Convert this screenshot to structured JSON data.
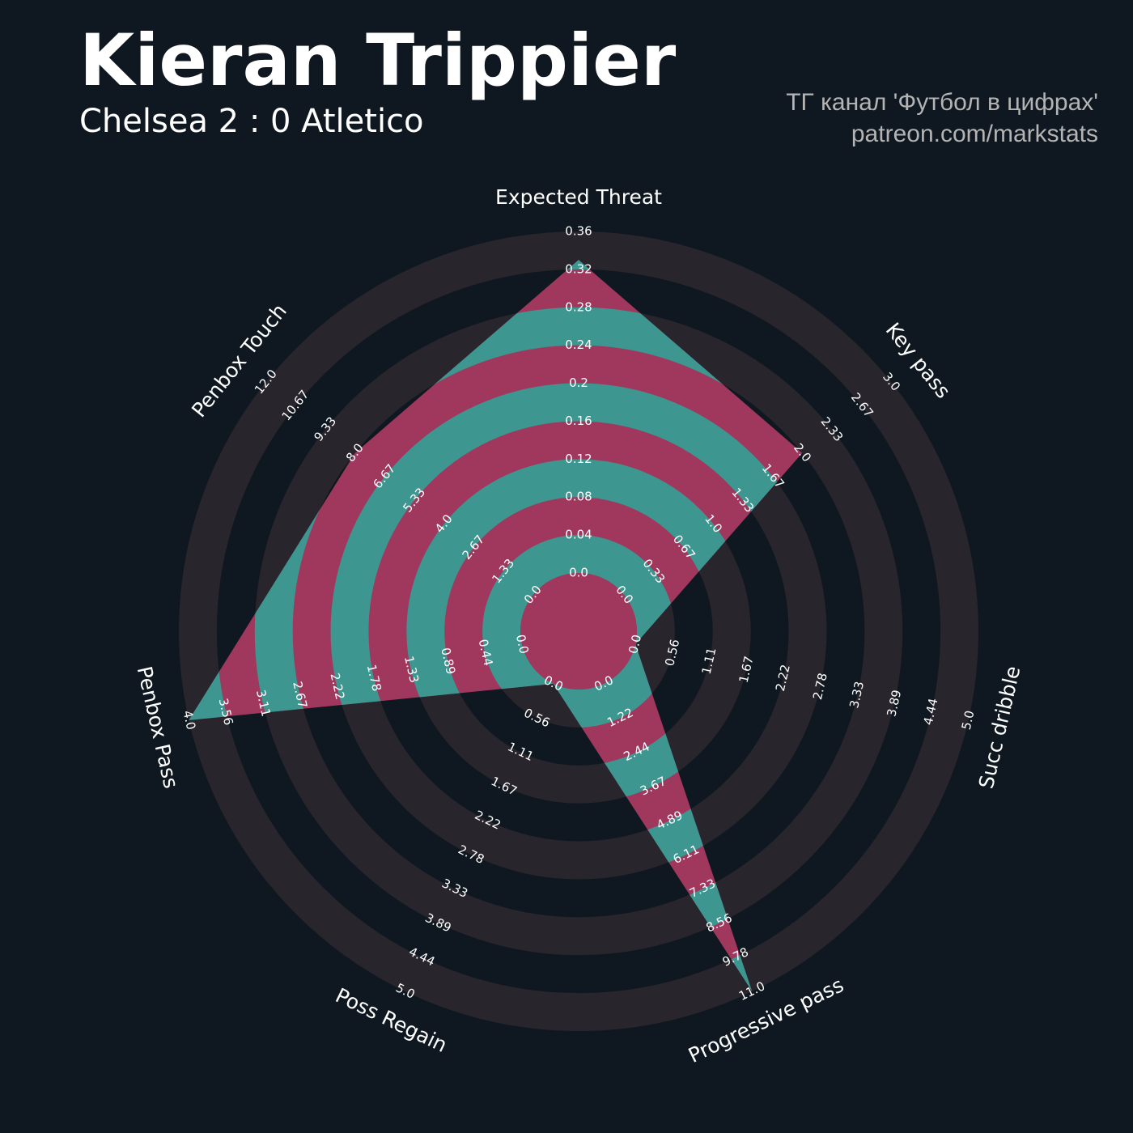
{
  "chart_data": {
    "type": "radar",
    "title": "Kieran Trippier",
    "subtitle": "Chelsea 2 : 0 Atletico",
    "annotations": [
      "ТГ канал 'Футбол в цифрах'",
      "patreon.com/markstats"
    ],
    "categories": [
      "Expected Threat",
      "Key pass",
      "Succ dribble",
      "Progressive pass",
      "Poss Regain",
      "Penbox Pass",
      "Penbox Touch"
    ],
    "values": [
      0.33,
      2,
      0,
      11,
      0,
      4,
      8
    ],
    "ranges": [
      [
        0,
        0.36
      ],
      [
        0,
        3
      ],
      [
        0,
        5
      ],
      [
        0,
        11
      ],
      [
        0,
        5
      ],
      [
        0,
        4
      ],
      [
        0,
        12
      ]
    ],
    "ticks": [
      [
        {
          "value": 0,
          "label": "0.0"
        },
        0.04,
        0.08,
        0.12,
        0.16,
        0.2,
        0.24,
        0.28,
        0.32,
        0.36
      ],
      [
        {
          "value": 0,
          "label": "0.0"
        },
        0.33,
        0.67,
        {
          "value": 1,
          "label": "1.0"
        },
        1.33,
        1.67,
        {
          "value": 2,
          "label": "2.0"
        },
        2.33,
        2.67,
        {
          "value": 3,
          "label": "3.0"
        }
      ],
      [
        {
          "value": 0,
          "label": "0.0"
        },
        0.56,
        1.11,
        1.67,
        2.22,
        2.78,
        3.33,
        3.89,
        4.44,
        {
          "value": 5,
          "label": "5.0"
        }
      ],
      [
        {
          "value": 0,
          "label": "0.0"
        },
        1.22,
        2.44,
        3.67,
        4.89,
        6.11,
        7.33,
        8.56,
        9.78,
        {
          "value": 11,
          "label": "11.0"
        }
      ],
      [
        {
          "value": 0,
          "label": "0.0"
        },
        0.56,
        1.11,
        1.67,
        2.22,
        2.78,
        3.33,
        3.89,
        4.44,
        {
          "value": 5,
          "label": "5.0"
        }
      ],
      [
        {
          "value": 0,
          "label": "0.0"
        },
        0.44,
        0.89,
        1.33,
        1.78,
        2.22,
        2.67,
        3.11,
        3.56,
        {
          "value": 4,
          "label": "4.0"
        }
      ],
      [
        {
          "value": 0,
          "label": "0.0"
        },
        1.33,
        2.67,
        {
          "value": 4,
          "label": "4.0"
        },
        5.33,
        6.67,
        {
          "value": 8,
          "label": "8.0"
        },
        9.33,
        10.67,
        {
          "value": 12,
          "label": "12.0"
        }
      ]
    ],
    "ring_color": "#28252c",
    "fill_colors": [
      "#3e9690",
      "#a0385e"
    ]
  }
}
